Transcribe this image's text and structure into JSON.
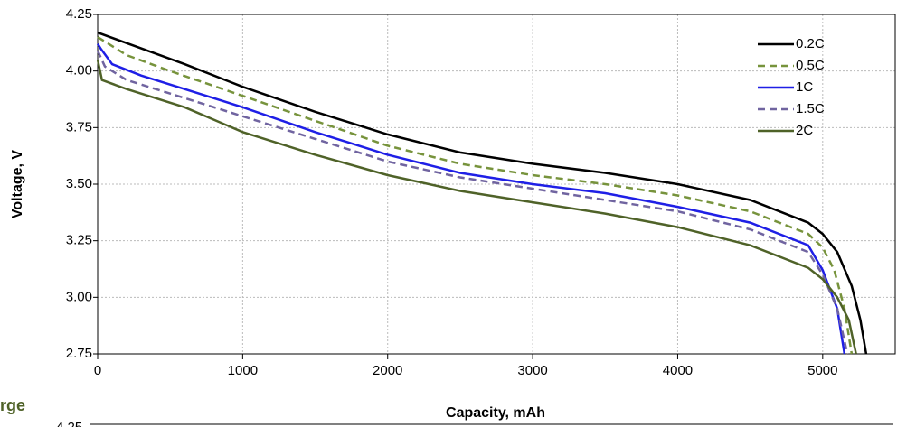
{
  "chart_data": {
    "type": "line",
    "x_label": "Capacity, mAh",
    "y_label": "Voltage, V",
    "xlim": [
      0,
      5500
    ],
    "ylim": [
      2.75,
      4.25
    ],
    "xticks": [
      0,
      1000,
      2000,
      3000,
      4000,
      5000
    ],
    "yticks": [
      2.75,
      {
        "value": 3,
        "label": "3.00"
      },
      3.25,
      {
        "value": 3.5,
        "label": "3.50"
      },
      3.75,
      {
        "value": 4,
        "label": "4.00"
      },
      4.25
    ],
    "grid": true,
    "legend": "upper right",
    "series": [
      {
        "name": "0.2C",
        "color": "#000000",
        "dashed": false,
        "x": [
          0,
          300,
          600,
          1000,
          1500,
          2000,
          2500,
          3000,
          3500,
          4000,
          4500,
          4900,
          5000,
          5100,
          5200,
          5260,
          5300
        ],
        "values": [
          4.17,
          4.1,
          4.03,
          3.93,
          3.82,
          3.72,
          3.64,
          3.59,
          3.55,
          3.5,
          3.43,
          3.33,
          3.28,
          3.2,
          3.05,
          2.9,
          2.75
        ]
      },
      {
        "name": "0.5C",
        "color": "#77933c",
        "dashed": true,
        "x": [
          0,
          200,
          500,
          1000,
          1500,
          2000,
          2500,
          3000,
          3500,
          4000,
          4500,
          4900,
          5000,
          5080,
          5150,
          5200
        ],
        "values": [
          4.15,
          4.07,
          4.0,
          3.89,
          3.78,
          3.67,
          3.59,
          3.54,
          3.5,
          3.45,
          3.38,
          3.28,
          3.22,
          3.12,
          2.95,
          2.75
        ]
      },
      {
        "name": "1C",
        "color": "#1f1fe6",
        "dashed": false,
        "x": [
          0,
          20,
          100,
          300,
          600,
          1000,
          1500,
          2000,
          2500,
          3000,
          3500,
          4000,
          4500,
          4900,
          5000,
          5100,
          5150
        ],
        "values": [
          4.12,
          4.1,
          4.03,
          3.98,
          3.92,
          3.84,
          3.73,
          3.63,
          3.55,
          3.5,
          3.46,
          3.4,
          3.33,
          3.23,
          3.12,
          2.95,
          2.75
        ]
      },
      {
        "name": "1.5C",
        "color": "#7064a0",
        "dashed": true,
        "x": [
          0,
          50,
          200,
          600,
          1000,
          1500,
          2000,
          2500,
          3000,
          3500,
          4000,
          4500,
          4900,
          5000,
          5100,
          5170
        ],
        "values": [
          4.09,
          4.02,
          3.96,
          3.88,
          3.8,
          3.7,
          3.6,
          3.53,
          3.48,
          3.43,
          3.38,
          3.3,
          3.2,
          3.1,
          2.95,
          2.75
        ]
      },
      {
        "name": "2C",
        "color": "#4f6228",
        "dashed": false,
        "x": [
          0,
          30,
          200,
          600,
          1000,
          1500,
          2000,
          2500,
          3000,
          3500,
          4000,
          4500,
          4900,
          5000,
          5100,
          5180,
          5230
        ],
        "values": [
          4.05,
          3.96,
          3.92,
          3.84,
          3.73,
          3.63,
          3.54,
          3.47,
          3.42,
          3.37,
          3.31,
          3.23,
          3.13,
          3.08,
          3.0,
          2.9,
          2.75
        ]
      }
    ]
  },
  "fragments": {
    "next_title": "rge",
    "next_ytick": "4.25"
  }
}
